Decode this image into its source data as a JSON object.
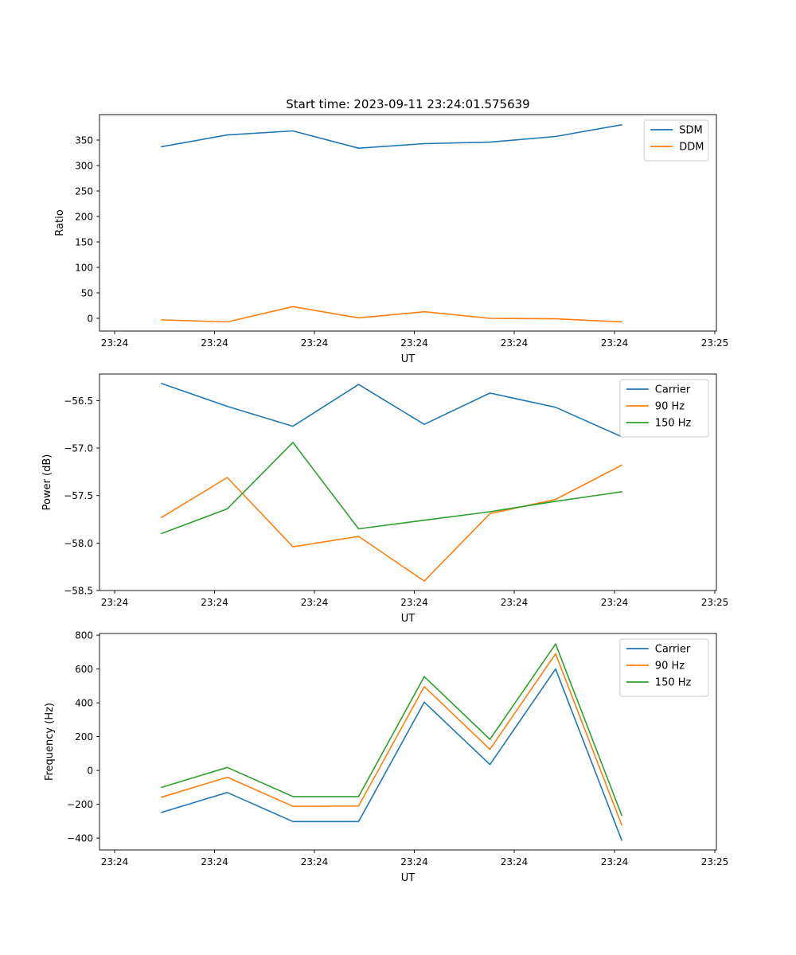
{
  "figure_title": "Start time: 2023-09-11 23:24:01.575639",
  "colors": {
    "blue": "#1f77b4",
    "orange": "#ff7f0e",
    "green": "#2ca02c"
  },
  "chart_data": [
    {
      "type": "line",
      "xlabel": "UT",
      "ylabel": "Ratio",
      "xticks": [
        "23:24",
        "23:24",
        "23:24",
        "23:24",
        "23:24",
        "23:24",
        "23:25"
      ],
      "yticks": [
        0,
        50,
        100,
        150,
        200,
        250,
        300,
        350
      ],
      "ytick_labels": [
        "0",
        "50",
        "100",
        "150",
        "200",
        "250",
        "300",
        "350"
      ],
      "ylim": [
        -25,
        400
      ],
      "legend_loc": "upper right",
      "series": [
        {
          "name": "SDM",
          "color": "#1f77b4",
          "values": [
            337,
            360,
            368,
            334,
            343,
            346,
            357,
            380
          ]
        },
        {
          "name": "DDM",
          "color": "#ff7f0e",
          "values": [
            -3,
            -7,
            23,
            1,
            13,
            0,
            -1,
            -7
          ]
        }
      ]
    },
    {
      "type": "line",
      "xlabel": "UT",
      "ylabel": "Power (dB)",
      "xticks": [
        "23:24",
        "23:24",
        "23:24",
        "23:24",
        "23:24",
        "23:24",
        "23:25"
      ],
      "yticks": [
        -58.5,
        -58.0,
        -57.5,
        -57.0,
        -56.5
      ],
      "ytick_labels": [
        "−58.5",
        "−58.0",
        "−57.5",
        "−57.0",
        "−56.5"
      ],
      "ylim": [
        -58.5,
        -56.22
      ],
      "legend_loc": "upper right",
      "series": [
        {
          "name": "Carrier",
          "color": "#1f77b4",
          "values": [
            -56.32,
            -56.56,
            -56.77,
            -56.33,
            -56.75,
            -56.42,
            -56.57,
            -56.88
          ]
        },
        {
          "name": "90 Hz",
          "color": "#ff7f0e",
          "values": [
            -57.73,
            -57.31,
            -58.04,
            -57.93,
            -58.4,
            -57.69,
            -57.54,
            -57.18
          ]
        },
        {
          "name": "150 Hz",
          "color": "#2ca02c",
          "values": [
            -57.9,
            -57.64,
            -56.94,
            -57.85,
            -57.76,
            -57.67,
            -57.56,
            -57.46
          ]
        }
      ]
    },
    {
      "type": "line",
      "xlabel": "UT",
      "ylabel": "Frequency (Hz)",
      "xticks": [
        "23:24",
        "23:24",
        "23:24",
        "23:24",
        "23:24",
        "23:24",
        "23:25"
      ],
      "yticks": [
        -400,
        -200,
        0,
        200,
        400,
        600,
        800
      ],
      "ytick_labels": [
        "−400",
        "−200",
        "0",
        "200",
        "400",
        "600",
        "800"
      ],
      "ylim": [
        -470,
        810
      ],
      "legend_loc": "upper right",
      "series": [
        {
          "name": "Carrier",
          "color": "#1f77b4",
          "values": [
            -248,
            -130,
            -302,
            -302,
            404,
            35,
            600,
            -412
          ]
        },
        {
          "name": "90 Hz",
          "color": "#ff7f0e",
          "values": [
            -158,
            -40,
            -212,
            -210,
            496,
            125,
            690,
            -322
          ]
        },
        {
          "name": "150 Hz",
          "color": "#2ca02c",
          "values": [
            -100,
            18,
            -154,
            -154,
            555,
            184,
            748,
            -265
          ]
        }
      ]
    }
  ]
}
